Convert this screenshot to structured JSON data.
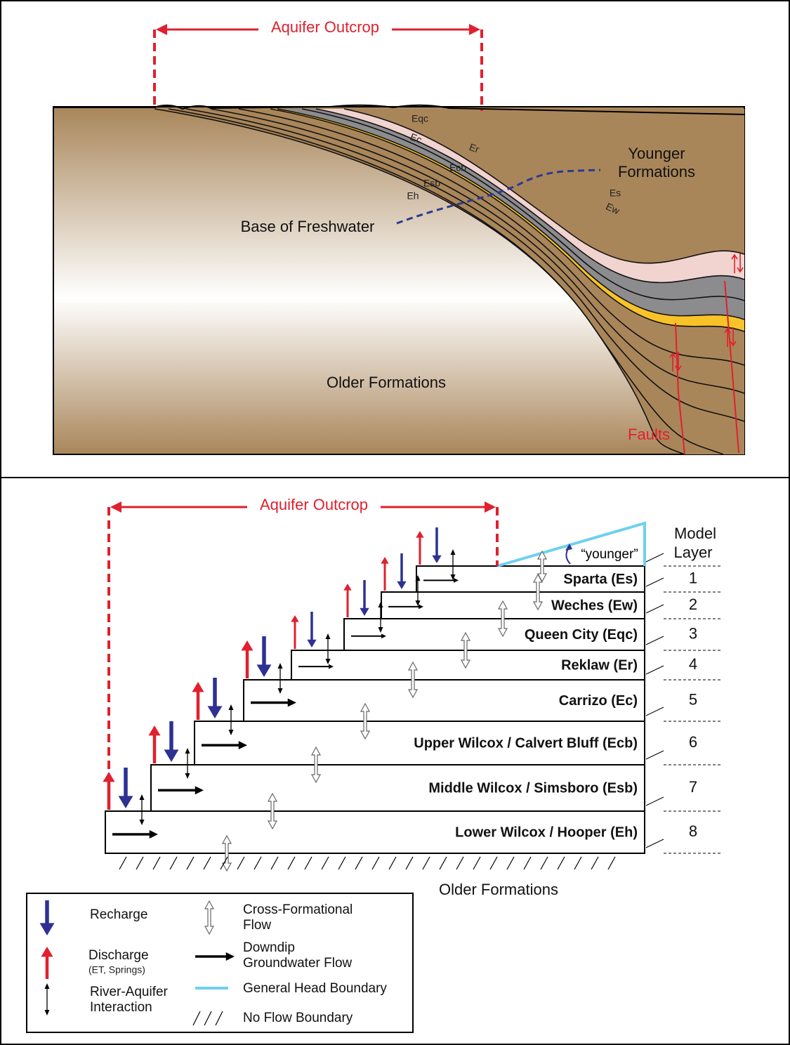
{
  "cross_section": {
    "outcrop_label": "Aquifer Outcrop",
    "formation_labels": [
      "Eqc",
      "Ec",
      "Er",
      "Ecb",
      "Esb",
      "Eh",
      "Es",
      "Ew"
    ],
    "younger_formations": [
      "Younger",
      "Formations"
    ],
    "base_of_freshwater": "Base of Freshwater",
    "older_formations": "Older Formations",
    "faults": "Faults"
  },
  "model": {
    "outcrop_label": "Aquifer Outcrop",
    "layer_header": [
      "Model",
      "Layer"
    ],
    "younger_label": "“younger”",
    "layers": [
      {
        "name": "Sparta (Es)",
        "number": 1
      },
      {
        "name": "Weches (Ew)",
        "number": 2
      },
      {
        "name": "Queen City (Eqc)",
        "number": 3
      },
      {
        "name": "Reklaw (Er)",
        "number": 4
      },
      {
        "name": "Carrizo (Ec)",
        "number": 5
      },
      {
        "name": "Upper Wilcox / Calvert Bluff (Ecb)",
        "number": 6
      },
      {
        "name": "Middle Wilcox / Simsboro (Esb)",
        "number": 7
      },
      {
        "name": "Lower Wilcox / Hooper (Eh)",
        "number": 8
      }
    ],
    "older_formations": "Older Formations"
  },
  "legend": {
    "items": [
      {
        "lines": [
          "Recharge"
        ]
      },
      {
        "lines": [
          "Discharge",
          "(ET, Springs)"
        ]
      },
      {
        "lines": [
          "River-Aquifer",
          "Interaction"
        ]
      },
      {
        "lines": [
          "Cross-Formational",
          "Flow"
        ]
      },
      {
        "lines": [
          "Downdip",
          "Groundwater Flow"
        ]
      },
      {
        "lines": [
          "General Head Boundary"
        ]
      },
      {
        "lines": [
          "No Flow Boundary"
        ]
      }
    ]
  }
}
